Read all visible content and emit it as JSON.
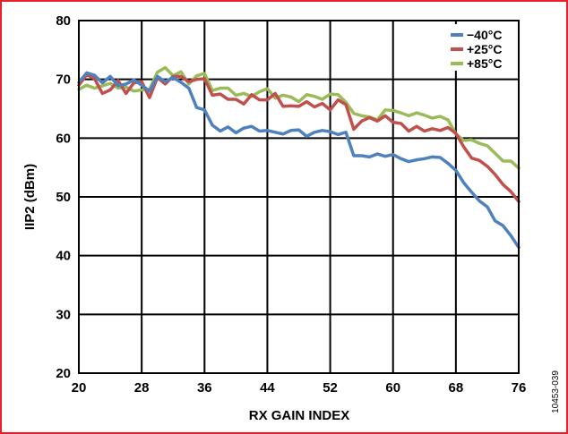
{
  "figure_id": "10453-039",
  "colors": {
    "border": "#e8202a",
    "minus40": "#4f81bd",
    "plus25": "#c0504d",
    "plus85": "#9bbb59"
  },
  "chart_data": {
    "type": "line",
    "title": "",
    "xlabel": "RX GAIN INDEX",
    "ylabel": "IIP2 (dBm)",
    "xlim": [
      20,
      76
    ],
    "ylim": [
      20,
      80
    ],
    "xticks": [
      20,
      28,
      36,
      44,
      52,
      60,
      68,
      76
    ],
    "yticks": [
      20,
      30,
      40,
      50,
      60,
      70,
      80
    ],
    "grid": true,
    "legend_position": "top-right",
    "series": [
      {
        "name": "−40°C",
        "color": "#4f81bd",
        "x": [
          20,
          21,
          22,
          23,
          24,
          25,
          26,
          27,
          28,
          29,
          30,
          31,
          32,
          33,
          34,
          35,
          36,
          37,
          38,
          39,
          40,
          41,
          42,
          43,
          44,
          45,
          46,
          47,
          48,
          49,
          50,
          51,
          52,
          53,
          54,
          55,
          56,
          57,
          58,
          59,
          60,
          61,
          62,
          63,
          64,
          65,
          66,
          67,
          68,
          69,
          70,
          71,
          72,
          73,
          74,
          75,
          76
        ],
        "y": [
          69.5,
          71.1,
          70.7,
          69.4,
          70.5,
          68.9,
          69.2,
          69.9,
          69.0,
          68.0,
          70.5,
          69.6,
          70.3,
          69.5,
          68.5,
          65.2,
          64.8,
          62.2,
          61.2,
          61.9,
          60.9,
          61.7,
          62.0,
          61.2,
          61.3,
          61.0,
          60.7,
          61.3,
          61.4,
          60.3,
          61.0,
          61.3,
          61.1,
          60.6,
          61.0,
          57.0,
          57.0,
          56.8,
          57.3,
          56.9,
          57.2,
          56.5,
          56.0,
          56.3,
          56.5,
          56.8,
          56.7,
          55.7,
          54.5,
          52.4,
          50.8,
          49.3,
          48.3,
          45.9,
          45.1,
          43.4,
          41.4
        ]
      },
      {
        "name": "+25°C",
        "color": "#c0504d",
        "x": [
          20,
          21,
          22,
          23,
          24,
          25,
          26,
          27,
          28,
          29,
          30,
          31,
          32,
          33,
          34,
          35,
          36,
          37,
          38,
          39,
          40,
          41,
          42,
          43,
          44,
          45,
          46,
          47,
          48,
          49,
          50,
          51,
          52,
          53,
          54,
          55,
          56,
          57,
          58,
          59,
          60,
          61,
          62,
          63,
          64,
          65,
          66,
          67,
          68,
          69,
          70,
          71,
          72,
          73,
          74,
          75,
          76
        ],
        "y": [
          69.0,
          70.8,
          70.1,
          67.6,
          68.2,
          69.8,
          67.6,
          69.4,
          69.6,
          66.9,
          70.3,
          69.2,
          70.5,
          70.5,
          69.6,
          70.0,
          70.1,
          67.3,
          67.5,
          66.6,
          66.6,
          65.8,
          67.4,
          66.5,
          66.5,
          67.6,
          65.4,
          65.5,
          65.4,
          66.2,
          65.3,
          65.9,
          64.8,
          66.5,
          65.7,
          61.5,
          62.9,
          63.5,
          62.9,
          63.8,
          62.7,
          62.5,
          61.2,
          62.0,
          61.2,
          61.6,
          61.3,
          61.8,
          60.8,
          58.5,
          56.6,
          56.2,
          55.2,
          53.8,
          52.1,
          50.9,
          49.2
        ]
      },
      {
        "name": "+85°C",
        "color": "#9bbb59",
        "x": [
          20,
          21,
          22,
          23,
          24,
          25,
          26,
          27,
          28,
          29,
          30,
          31,
          32,
          33,
          34,
          35,
          36,
          37,
          38,
          39,
          40,
          41,
          42,
          43,
          44,
          45,
          46,
          47,
          48,
          49,
          50,
          51,
          52,
          53,
          54,
          55,
          56,
          57,
          58,
          59,
          60,
          61,
          62,
          63,
          64,
          65,
          66,
          67,
          68,
          69,
          70,
          71,
          72,
          73,
          74,
          75,
          76
        ],
        "y": [
          68.3,
          69.0,
          68.5,
          68.9,
          69.3,
          68.5,
          68.7,
          68.0,
          68.2,
          68.3,
          71.2,
          72.0,
          70.6,
          71.3,
          69.2,
          70.6,
          71.0,
          68.1,
          68.5,
          68.5,
          67.3,
          67.6,
          67.1,
          67.9,
          68.4,
          66.8,
          67.3,
          67.0,
          66.2,
          67.4,
          67.1,
          66.6,
          67.5,
          67.4,
          66.1,
          64.2,
          63.8,
          63.6,
          63.1,
          64.8,
          64.7,
          64.3,
          63.8,
          64.3,
          63.9,
          63.4,
          63.7,
          63.1,
          60.7,
          59.6,
          59.7,
          59.1,
          58.7,
          57.4,
          56.1,
          56.1,
          54.9
        ]
      }
    ]
  }
}
